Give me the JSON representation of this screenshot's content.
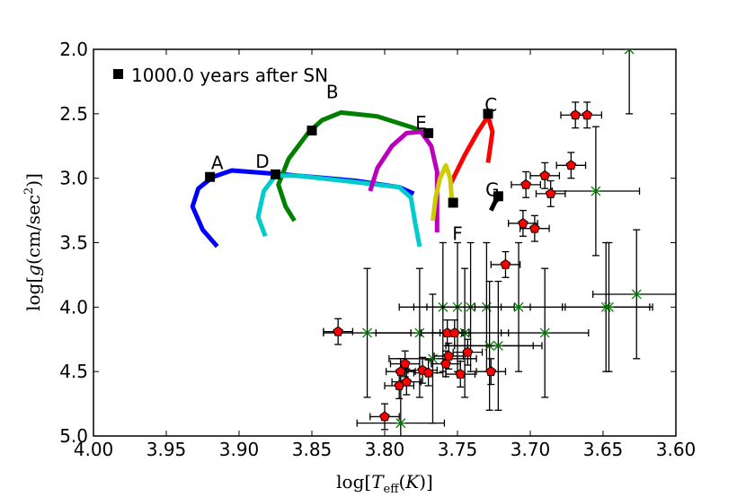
{
  "chart_data": {
    "type": "scatter",
    "xlabel": "log[T_eff(K)]",
    "ylabel": "log[g(cm/sec^2)]",
    "xlim": [
      4.0,
      3.6
    ],
    "ylim": [
      5.0,
      2.0
    ],
    "x_ticks": [
      "4.00",
      "3.95",
      "3.90",
      "3.85",
      "3.80",
      "3.75",
      "3.70",
      "3.65",
      "3.60"
    ],
    "y_ticks": [
      "2.0",
      "2.5",
      "3.0",
      "3.5",
      "4.0",
      "4.5",
      "5.0"
    ],
    "legend": {
      "label": "1000.0 years after SN",
      "marker": "square",
      "placement": "top-left"
    },
    "tracks": [
      {
        "name": "A",
        "color": "#0000ff",
        "points": [
          [
            3.915,
            3.53
          ],
          [
            3.925,
            3.4
          ],
          [
            3.932,
            3.22
          ],
          [
            3.928,
            3.08
          ],
          [
            3.918,
            2.99
          ],
          [
            3.905,
            2.94
          ],
          [
            3.87,
            2.97
          ],
          [
            3.82,
            3.02
          ],
          [
            3.79,
            3.07
          ],
          [
            3.78,
            3.12
          ]
        ],
        "marker": [
          3.92,
          2.99
        ],
        "label_at": [
          3.915,
          2.88
        ]
      },
      {
        "name": "B",
        "color": "#008000",
        "points": [
          [
            3.862,
            3.33
          ],
          [
            3.868,
            3.22
          ],
          [
            3.873,
            3.05
          ],
          [
            3.866,
            2.85
          ],
          [
            3.852,
            2.64
          ],
          [
            3.843,
            2.55
          ],
          [
            3.83,
            2.49
          ],
          [
            3.805,
            2.52
          ],
          [
            3.78,
            2.61
          ],
          [
            3.77,
            2.66
          ]
        ],
        "marker": [
          3.85,
          2.63
        ],
        "label_at": [
          3.836,
          2.33
        ]
      },
      {
        "name": "C",
        "color": "#ff0000",
        "points": [
          [
            3.755,
            3.05
          ],
          [
            3.745,
            2.82
          ],
          [
            3.736,
            2.64
          ],
          [
            3.729,
            2.52
          ],
          [
            3.726,
            2.64
          ],
          [
            3.729,
            2.88
          ]
        ],
        "marker": [
          3.729,
          2.5
        ],
        "label_at": [
          3.727,
          2.43
        ]
      },
      {
        "name": "D",
        "color": "#00cccc",
        "points": [
          [
            3.882,
            3.45
          ],
          [
            3.887,
            3.3
          ],
          [
            3.883,
            3.1
          ],
          [
            3.875,
            2.98
          ],
          [
            3.86,
            2.98
          ],
          [
            3.82,
            3.03
          ],
          [
            3.79,
            3.07
          ],
          [
            3.782,
            3.15
          ],
          [
            3.779,
            3.35
          ],
          [
            3.776,
            3.53
          ]
        ],
        "marker": [
          3.875,
          2.97
        ],
        "label_at": [
          3.884,
          2.87
        ]
      },
      {
        "name": "E",
        "color": "#bb00bb",
        "points": [
          [
            3.81,
            3.1
          ],
          [
            3.805,
            2.92
          ],
          [
            3.795,
            2.75
          ],
          [
            3.785,
            2.65
          ],
          [
            3.775,
            2.64
          ],
          [
            3.768,
            2.75
          ],
          [
            3.764,
            2.95
          ],
          [
            3.764,
            3.22
          ],
          [
            3.764,
            3.42
          ]
        ],
        "marker": [
          3.77,
          2.65
        ],
        "label_at": [
          3.775,
          2.57
        ]
      },
      {
        "name": "F",
        "color": "#cccc00",
        "points": [
          [
            3.767,
            3.33
          ],
          [
            3.765,
            3.15
          ],
          [
            3.762,
            3.0
          ],
          [
            3.758,
            2.9
          ],
          [
            3.755,
            3.0
          ],
          [
            3.754,
            3.15
          ],
          [
            3.754,
            3.22
          ]
        ],
        "marker": [
          3.753,
          3.19
        ],
        "label_at": [
          3.75,
          3.43
        ]
      },
      {
        "name": "G",
        "color": "#000000",
        "points": [
          [
            3.727,
            3.25
          ],
          [
            3.724,
            3.18
          ],
          [
            3.72,
            3.14
          ]
        ],
        "marker": [
          3.722,
          3.14
        ],
        "label_at": [
          3.726,
          3.09
        ]
      }
    ],
    "observed_red": [
      {
        "x": 3.832,
        "y": 4.19,
        "xerr": 0.01,
        "yerr": 0.1
      },
      {
        "x": 3.8,
        "y": 4.85,
        "xerr": 0.01,
        "yerr": 0.1
      },
      {
        "x": 3.79,
        "y": 4.61,
        "xerr": 0.01,
        "yerr": 0.1
      },
      {
        "x": 3.789,
        "y": 4.5,
        "xerr": 0.01,
        "yerr": 0.1
      },
      {
        "x": 3.786,
        "y": 4.44,
        "xerr": 0.01,
        "yerr": 0.1
      },
      {
        "x": 3.785,
        "y": 4.58,
        "xerr": 0.01,
        "yerr": 0.1
      },
      {
        "x": 3.774,
        "y": 4.49,
        "xerr": 0.01,
        "yerr": 0.1
      },
      {
        "x": 3.77,
        "y": 4.51,
        "xerr": 0.01,
        "yerr": 0.1
      },
      {
        "x": 3.758,
        "y": 4.44,
        "xerr": 0.01,
        "yerr": 0.1
      },
      {
        "x": 3.756,
        "y": 4.38,
        "xerr": 0.01,
        "yerr": 0.1
      },
      {
        "x": 3.757,
        "y": 4.2,
        "xerr": 0.01,
        "yerr": 0.1
      },
      {
        "x": 3.752,
        "y": 4.2,
        "xerr": 0.01,
        "yerr": 0.1
      },
      {
        "x": 3.748,
        "y": 4.52,
        "xerr": 0.01,
        "yerr": 0.1
      },
      {
        "x": 3.743,
        "y": 4.35,
        "xerr": 0.01,
        "yerr": 0.1
      },
      {
        "x": 3.727,
        "y": 4.5,
        "xerr": 0.01,
        "yerr": 0.1
      },
      {
        "x": 3.717,
        "y": 3.67,
        "xerr": 0.01,
        "yerr": 0.1
      },
      {
        "x": 3.705,
        "y": 3.35,
        "xerr": 0.01,
        "yerr": 0.1
      },
      {
        "x": 3.703,
        "y": 3.05,
        "xerr": 0.01,
        "yerr": 0.1
      },
      {
        "x": 3.697,
        "y": 3.39,
        "xerr": 0.01,
        "yerr": 0.1
      },
      {
        "x": 3.69,
        "y": 2.98,
        "xerr": 0.01,
        "yerr": 0.1
      },
      {
        "x": 3.686,
        "y": 3.12,
        "xerr": 0.01,
        "yerr": 0.1
      },
      {
        "x": 3.672,
        "y": 2.9,
        "xerr": 0.01,
        "yerr": 0.1
      },
      {
        "x": 3.669,
        "y": 2.51,
        "xerr": 0.01,
        "yerr": 0.1
      },
      {
        "x": 3.661,
        "y": 2.51,
        "xerr": 0.01,
        "yerr": 0.1
      }
    ],
    "observed_green": [
      {
        "x": 3.812,
        "y": 4.2,
        "xerr": 0.03,
        "yerr": 0.5
      },
      {
        "x": 3.789,
        "y": 4.9,
        "xerr": 0.03,
        "yerr": 0.5
      },
      {
        "x": 3.776,
        "y": 4.2,
        "xerr": 0.03,
        "yerr": 0.5
      },
      {
        "x": 3.767,
        "y": 4.4,
        "xerr": 0.03,
        "yerr": 0.5
      },
      {
        "x": 3.76,
        "y": 4.0,
        "xerr": 0.03,
        "yerr": 0.5
      },
      {
        "x": 3.75,
        "y": 4.0,
        "xerr": 0.03,
        "yerr": 0.5
      },
      {
        "x": 3.745,
        "y": 4.2,
        "xerr": 0.03,
        "yerr": 0.5
      },
      {
        "x": 3.741,
        "y": 4.0,
        "xerr": 0.03,
        "yerr": 0.5
      },
      {
        "x": 3.73,
        "y": 4.0,
        "xerr": 0.03,
        "yerr": 0.5
      },
      {
        "x": 3.728,
        "y": 4.3,
        "xerr": 0.03,
        "yerr": 0.5
      },
      {
        "x": 3.722,
        "y": 4.3,
        "xerr": 0.03,
        "yerr": 0.5
      },
      {
        "x": 3.708,
        "y": 4.0,
        "xerr": 0.03,
        "yerr": 0.5
      },
      {
        "x": 3.69,
        "y": 4.2,
        "xerr": 0.03,
        "yerr": 0.5
      },
      {
        "x": 3.655,
        "y": 3.1,
        "xerr": 0.03,
        "yerr": 0.5
      },
      {
        "x": 3.648,
        "y": 4.0,
        "xerr": 0.03,
        "yerr": 0.5
      },
      {
        "x": 3.646,
        "y": 4.0,
        "xerr": 0.03,
        "yerr": 0.5
      },
      {
        "x": 3.627,
        "y": 3.9,
        "xerr": 0.03,
        "yerr": 0.5
      },
      {
        "x": 3.632,
        "y": 2.0,
        "xerr": 0.0,
        "yerr": 0.5
      }
    ]
  }
}
